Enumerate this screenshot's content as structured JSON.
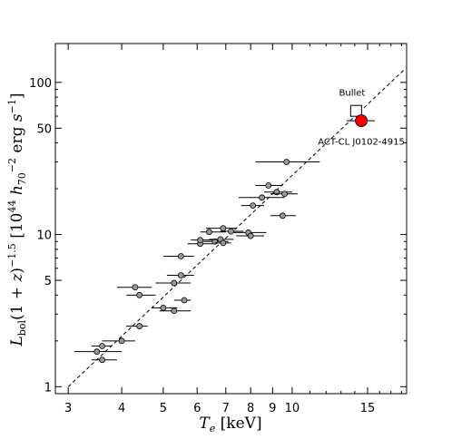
{
  "chart_data": {
    "type": "scatter",
    "title": "",
    "xlabel": "T_e [keV]",
    "ylabel": "L_bol (1+z)^-1.5 [10^44 h_70^-2 erg s^-1]",
    "x_scale": "log",
    "y_scale": "log",
    "xlim": [
      2.8,
      18.5
    ],
    "ylim": [
      0.9,
      180
    ],
    "x_ticks": [
      3,
      4,
      5,
      6,
      7,
      8,
      9,
      10,
      15
    ],
    "x_tick_labels": [
      "3",
      "4",
      "5",
      "6",
      "7",
      "8",
      "9",
      "10",
      "15"
    ],
    "y_ticks": [
      1,
      5,
      10,
      50,
      100
    ],
    "y_tick_labels": [
      "1",
      "5",
      "10",
      "50",
      "100"
    ],
    "grid": false,
    "legend": "none",
    "fit_line": {
      "style": "dashed",
      "color": "#000000",
      "points": [
        [
          3.0,
          1.0
        ],
        [
          18.2,
          120
        ]
      ]
    },
    "series": [
      {
        "marker": "circle",
        "color": "#999999",
        "points": [
          {
            "x": 3.5,
            "y": 1.7,
            "xerr": [
              3.1,
              4.0
            ]
          },
          {
            "x": 3.6,
            "y": 1.85,
            "xerr": [
              3.4,
              3.8
            ]
          },
          {
            "x": 3.6,
            "y": 1.5,
            "xerr": [
              3.4,
              3.9
            ]
          },
          {
            "x": 4.0,
            "y": 2.0,
            "xerr": [
              3.6,
              4.3
            ]
          },
          {
            "x": 4.4,
            "y": 2.5,
            "xerr": [
              4.1,
              4.6
            ]
          },
          {
            "x": 4.4,
            "y": 4.0,
            "xerr": [
              4.1,
              4.8
            ]
          },
          {
            "x": 4.3,
            "y": 4.5,
            "xerr": [
              3.9,
              4.7
            ]
          },
          {
            "x": 5.0,
            "y": 3.3,
            "xerr": [
              4.7,
              5.4
            ]
          },
          {
            "x": 5.3,
            "y": 3.15,
            "xerr": [
              4.9,
              5.8
            ]
          },
          {
            "x": 5.6,
            "y": 3.7,
            "xerr": [
              5.3,
              5.8
            ]
          },
          {
            "x": 5.3,
            "y": 4.8,
            "xerr": [
              4.8,
              5.8
            ]
          },
          {
            "x": 5.5,
            "y": 5.4,
            "xerr": [
              5.1,
              5.9
            ]
          },
          {
            "x": 5.5,
            "y": 7.2,
            "xerr": [
              5.0,
              5.9
            ]
          },
          {
            "x": 6.1,
            "y": 8.7,
            "xerr": [
              5.7,
              6.6
            ]
          },
          {
            "x": 6.1,
            "y": 9.2,
            "xerr": [
              5.8,
              6.7
            ]
          },
          {
            "x": 6.4,
            "y": 10.4,
            "xerr": [
              6.1,
              7.0
            ]
          },
          {
            "x": 6.6,
            "y": 9.0,
            "xerr": [
              6.2,
              7.1
            ]
          },
          {
            "x": 6.8,
            "y": 9.3,
            "xerr": [
              6.4,
              7.3
            ]
          },
          {
            "x": 6.9,
            "y": 8.8,
            "xerr": [
              6.6,
              7.2
            ]
          },
          {
            "x": 6.9,
            "y": 11.0,
            "xerr": [
              6.3,
              7.4
            ]
          },
          {
            "x": 7.2,
            "y": 10.5,
            "xerr": [
              6.8,
              7.7
            ]
          },
          {
            "x": 7.9,
            "y": 10.3,
            "xerr": [
              7.3,
              8.7
            ]
          },
          {
            "x": 8.0,
            "y": 9.8,
            "xerr": [
              7.4,
              8.6
            ]
          },
          {
            "x": 8.1,
            "y": 15.5,
            "xerr": [
              7.6,
              8.6
            ]
          },
          {
            "x": 8.5,
            "y": 17.5,
            "xerr": [
              7.5,
              9.6
            ]
          },
          {
            "x": 8.8,
            "y": 21.0,
            "xerr": [
              8.2,
              9.5
            ]
          },
          {
            "x": 9.2,
            "y": 19.0,
            "xerr": [
              8.6,
              10.0
            ]
          },
          {
            "x": 9.6,
            "y": 18.5,
            "xerr": [
              8.9,
              10.3
            ]
          },
          {
            "x": 9.5,
            "y": 13.3,
            "xerr": [
              8.9,
              10.2
            ]
          },
          {
            "x": 9.7,
            "y": 30.0,
            "xerr": [
              8.2,
              11.6
            ]
          }
        ]
      },
      {
        "name": "Bullet",
        "marker": "square-open",
        "color": "#000000",
        "points": [
          {
            "x": 14.1,
            "y": 65.0
          }
        ]
      },
      {
        "name": "ACT-CL J0102-4915",
        "marker": "circle",
        "color": "#ff0000",
        "points": [
          {
            "x": 14.5,
            "y": 56.0,
            "xerr": [
              13.4,
              15.6
            ]
          }
        ]
      }
    ],
    "annotations": [
      {
        "text": "Bullet",
        "x": 13.8,
        "y": 82
      },
      {
        "text": "ACT-CL J0102-4915",
        "x": 14.5,
        "y": 39
      }
    ]
  }
}
